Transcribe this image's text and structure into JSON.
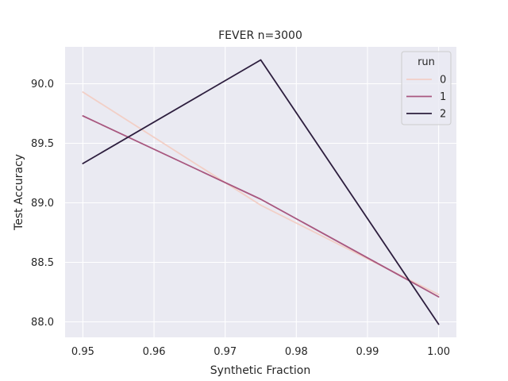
{
  "chart_data": {
    "type": "line",
    "title": "FEVER n=3000",
    "xlabel": "Synthetic Fraction",
    "ylabel": "Test Accuracy",
    "x": [
      0.95,
      0.975,
      1.0
    ],
    "xlim": [
      0.9475,
      1.0025
    ],
    "ylim": [
      87.87,
      90.31
    ],
    "xticks": [
      0.95,
      0.96,
      0.97,
      0.98,
      0.99,
      1.0
    ],
    "xtick_labels": [
      "0.95",
      "0.96",
      "0.97",
      "0.98",
      "0.99",
      "1.00"
    ],
    "yticks": [
      88.0,
      88.5,
      89.0,
      89.5,
      90.0
    ],
    "ytick_labels": [
      "88.0",
      "88.5",
      "89.0",
      "89.5",
      "90.0"
    ],
    "grid": true,
    "legend": {
      "title": "run",
      "placement": "top-right"
    },
    "series": [
      {
        "name": "0",
        "values": [
          89.93,
          88.98,
          88.23
        ],
        "color": "#f2cfc6"
      },
      {
        "name": "1",
        "values": [
          89.73,
          89.03,
          88.21
        ],
        "color": "#a8577f"
      },
      {
        "name": "2",
        "values": [
          89.33,
          90.2,
          87.98
        ],
        "color": "#2d1e3e"
      }
    ],
    "background": "#eaeaf2",
    "grid_color": "#ffffff"
  }
}
